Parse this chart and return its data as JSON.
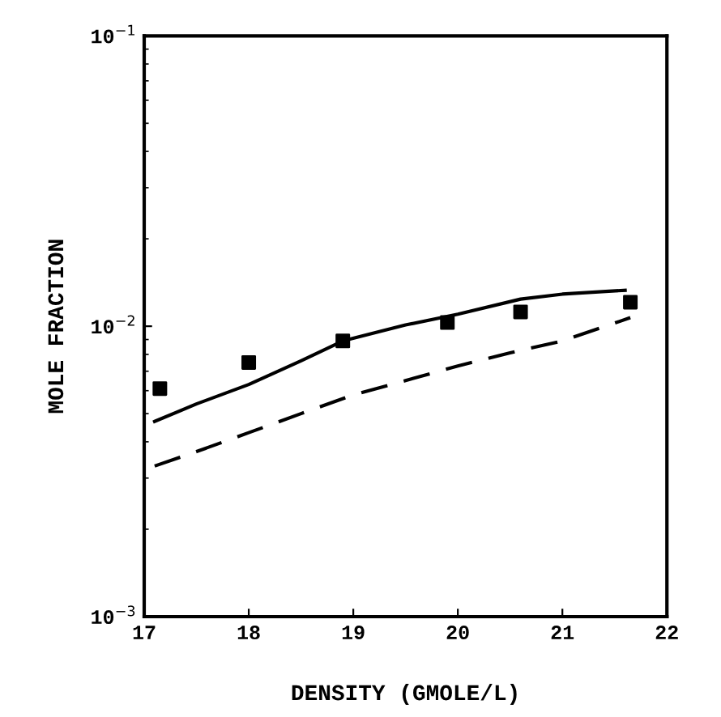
{
  "chart_data": {
    "type": "scatter",
    "xlabel": "DENSITY (GMOLE/L)",
    "ylabel": "MOLE FRACTION",
    "log": "y",
    "xlim": [
      17,
      22
    ],
    "xticks": [
      17,
      18,
      19,
      20,
      21,
      22
    ],
    "ylim": [
      0.001,
      0.1
    ],
    "yticks": [
      {
        "value": 0.001,
        "label": "10$^{−3}$"
      },
      {
        "value": 0.01,
        "label": "10$^{−2}$"
      },
      {
        "value": 0.1,
        "label": "10$^{−1}$"
      }
    ],
    "grid": false,
    "series": [
      {
        "marker": "square",
        "color": "#000000",
        "x": [
          17.15,
          18.0,
          18.9,
          19.9,
          20.6,
          21.65
        ],
        "values": [
          0.0061,
          0.0075,
          0.0089,
          0.0103,
          0.0112,
          0.0121
        ]
      },
      {
        "type": "line",
        "line_style": "solid",
        "marker": "none",
        "color": "#000000",
        "x": [
          17.1,
          17.5,
          18.0,
          18.5,
          18.9,
          19.5,
          20.0,
          20.6,
          21.0,
          21.6
        ],
        "values": [
          0.0047,
          0.0054,
          0.0063,
          0.0076,
          0.0089,
          0.0101,
          0.011,
          0.0124,
          0.0129,
          0.0133
        ]
      },
      {
        "type": "line",
        "line_style": "dashed",
        "marker": "none",
        "color": "#000000",
        "x": [
          17.1,
          17.5,
          18.0,
          18.5,
          19.0,
          19.5,
          20.0,
          20.5,
          21.0,
          21.65
        ],
        "values": [
          0.0033,
          0.0037,
          0.0043,
          0.005,
          0.0058,
          0.0065,
          0.0073,
          0.0081,
          0.0089,
          0.0107
        ]
      }
    ]
  }
}
